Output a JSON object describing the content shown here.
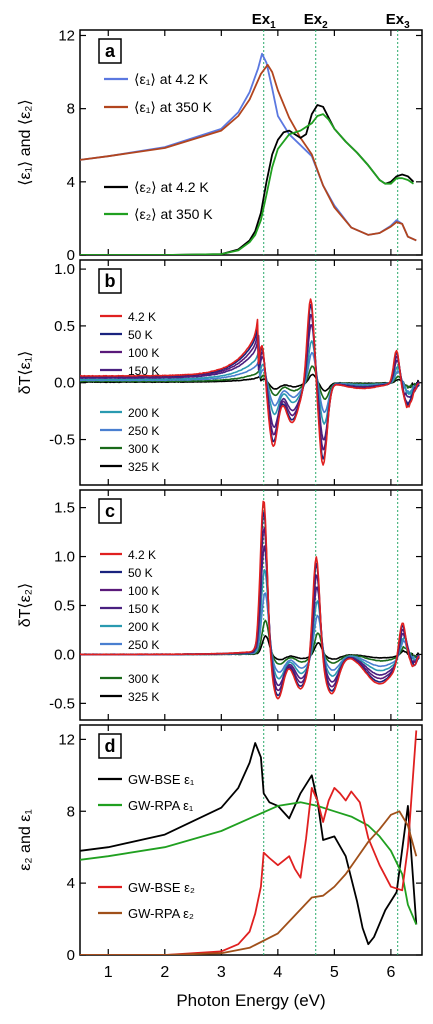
{
  "figure": {
    "xlabel": "Photon Energy (eV)",
    "xticks": [
      "1",
      "2",
      "3",
      "4",
      "5",
      "6"
    ],
    "excitons": [
      {
        "label": "Ex",
        "sub": "1",
        "x": 3.75
      },
      {
        "label": "Ex",
        "sub": "2",
        "x": 4.67
      },
      {
        "label": "Ex",
        "sub": "3",
        "x": 6.12
      }
    ],
    "colors": {
      "blue": "#5b78e0",
      "brown_red": "#b2451e",
      "black": "#000000",
      "green": "#20a020",
      "red": "#e02020",
      "navy": "#1a237e",
      "purple": "#5a1a7a",
      "indigo": "#4a2080",
      "teal": "#2a9ab0",
      "lightblue": "#4a7fd0",
      "darkgreen": "#1a6a1a",
      "brown": "#a0501a",
      "guide": "#2aaa6a"
    }
  },
  "chart_data": [
    {
      "type": "line",
      "panel_label": "a",
      "ylabel": "⟨ε₁⟩ and ⟨ε₂⟩",
      "xlim": [
        0.5,
        6.55
      ],
      "ylim": [
        0,
        12.3
      ],
      "yticks": [
        "0",
        "4",
        "8",
        "12"
      ],
      "series": [
        {
          "name": "⟨ε₁⟩ at 4.2 K",
          "color": "blue",
          "x": [
            0.5,
            1.0,
            2.0,
            3.0,
            3.3,
            3.5,
            3.65,
            3.72,
            3.8,
            3.9,
            4.0,
            4.2,
            4.4,
            4.6,
            4.8,
            5.0,
            5.3,
            5.6,
            5.8,
            6.0,
            6.1,
            6.2,
            6.3,
            6.45
          ],
          "y": [
            5.2,
            5.4,
            5.9,
            6.9,
            7.8,
            8.9,
            10.2,
            11.0,
            10.5,
            9.1,
            7.6,
            6.6,
            6.0,
            5.4,
            3.8,
            2.7,
            1.5,
            1.1,
            1.2,
            1.6,
            1.9,
            1.7,
            1.0,
            0.8
          ]
        },
        {
          "name": "⟨ε₁⟩ at 350 K",
          "color": "brown_red",
          "x": [
            0.5,
            1.0,
            2.0,
            3.0,
            3.3,
            3.5,
            3.7,
            3.82,
            3.9,
            4.0,
            4.2,
            4.4,
            4.6,
            4.8,
            5.0,
            5.3,
            5.6,
            5.8,
            6.0,
            6.1,
            6.2,
            6.3,
            6.45
          ],
          "y": [
            5.2,
            5.4,
            5.85,
            6.8,
            7.6,
            8.5,
            9.9,
            10.4,
            10.0,
            9.0,
            7.5,
            6.4,
            5.5,
            3.8,
            2.6,
            1.5,
            1.1,
            1.2,
            1.55,
            1.8,
            1.7,
            1.0,
            0.8
          ]
        },
        {
          "name": "⟨ε₂⟩ at 4.2 K",
          "color": "black",
          "x": [
            0.5,
            1.0,
            2.0,
            3.0,
            3.3,
            3.5,
            3.6,
            3.7,
            3.8,
            3.9,
            4.0,
            4.1,
            4.2,
            4.3,
            4.4,
            4.5,
            4.6,
            4.7,
            4.8,
            4.9,
            5.0,
            5.2,
            5.4,
            5.6,
            5.8,
            5.9,
            6.0,
            6.1,
            6.2,
            6.3,
            6.4
          ],
          "y": [
            0,
            0,
            0,
            0.05,
            0.3,
            0.8,
            1.3,
            2.3,
            4.0,
            5.5,
            6.3,
            6.7,
            6.8,
            6.6,
            6.4,
            6.6,
            7.7,
            8.2,
            8.1,
            7.5,
            6.9,
            6.2,
            5.6,
            4.9,
            4.1,
            3.9,
            4.0,
            4.3,
            4.4,
            4.3,
            4.0
          ]
        },
        {
          "name": "⟨ε₂⟩ at 350 K",
          "color": "green",
          "x": [
            0.5,
            1.0,
            2.0,
            3.0,
            3.3,
            3.5,
            3.6,
            3.7,
            3.8,
            3.9,
            4.0,
            4.2,
            4.4,
            4.6,
            4.7,
            4.8,
            4.9,
            5.0,
            5.2,
            5.4,
            5.6,
            5.8,
            5.9,
            6.0,
            6.1,
            6.2,
            6.3,
            6.4
          ],
          "y": [
            0,
            0,
            0,
            0.05,
            0.25,
            0.7,
            1.1,
            1.9,
            3.3,
            4.8,
            5.8,
            6.6,
            6.8,
            7.2,
            7.6,
            7.7,
            7.4,
            6.9,
            6.2,
            5.6,
            4.9,
            4.1,
            3.9,
            3.9,
            4.2,
            4.2,
            4.1,
            3.9
          ]
        }
      ]
    },
    {
      "type": "line",
      "panel_label": "b",
      "ylabel": "δT⟨ε₁⟩",
      "xlim": [
        0.5,
        6.55
      ],
      "ylim": [
        -0.9,
        1.08
      ],
      "yticks": [
        "-0.5",
        "0.0",
        "0.5",
        "1.0"
      ],
      "series": [
        {
          "name": "4.2 K",
          "color": "red",
          "amp": 1.0
        },
        {
          "name": "50 K",
          "color": "navy",
          "amp": 0.93
        },
        {
          "name": "100 K",
          "color": "purple",
          "amp": 0.82
        },
        {
          "name": "150 K",
          "color": "indigo",
          "amp": 0.7
        },
        {
          "name": "200 K",
          "color": "teal",
          "amp": 0.5
        },
        {
          "name": "250 K",
          "color": "lightblue",
          "amp": 0.36
        },
        {
          "name": "300 K",
          "color": "darkgreen",
          "amp": 0.2
        },
        {
          "name": "325 K",
          "color": "black",
          "amp": 0.1
        }
      ]
    },
    {
      "type": "line",
      "panel_label": "c",
      "ylabel": "δT⟨ε₂⟩",
      "xlim": [
        0.5,
        6.55
      ],
      "ylim": [
        -0.67,
        1.68
      ],
      "yticks": [
        "-0.5",
        "0.0",
        "0.5",
        "1.0",
        "1.5"
      ],
      "series": [
        {
          "name": "4.2 K",
          "color": "red",
          "amp": 1.0
        },
        {
          "name": "50 K",
          "color": "navy",
          "amp": 0.93
        },
        {
          "name": "100 K",
          "color": "purple",
          "amp": 0.82
        },
        {
          "name": "150 K",
          "color": "indigo",
          "amp": 0.7
        },
        {
          "name": "200 K",
          "color": "teal",
          "amp": 0.55
        },
        {
          "name": "250 K",
          "color": "lightblue",
          "amp": 0.4
        },
        {
          "name": "300 K",
          "color": "darkgreen",
          "amp": 0.22
        },
        {
          "name": "325 K",
          "color": "black",
          "amp": 0.12
        }
      ]
    },
    {
      "type": "line",
      "panel_label": "d",
      "ylabel": "ε₂ and ε₁",
      "xlim": [
        0.5,
        6.55
      ],
      "ylim": [
        0,
        12.8
      ],
      "yticks": [
        "0",
        "4",
        "8",
        "12"
      ],
      "series": [
        {
          "name": "GW-BSE ε₁",
          "color": "black",
          "x": [
            0.5,
            1.0,
            2.0,
            3.0,
            3.3,
            3.5,
            3.6,
            3.7,
            3.75,
            3.85,
            4.0,
            4.2,
            4.4,
            4.6,
            4.7,
            4.8,
            5.0,
            5.2,
            5.4,
            5.5,
            5.6,
            5.7,
            5.9,
            6.1,
            6.3,
            6.45
          ],
          "y": [
            5.8,
            6.0,
            6.7,
            8.2,
            9.3,
            10.7,
            11.8,
            11.0,
            9.0,
            8.5,
            8.3,
            7.6,
            9.0,
            10.0,
            8.6,
            6.4,
            6.6,
            5.5,
            3.0,
            1.5,
            0.6,
            1.0,
            2.5,
            3.5,
            8.3,
            1.7
          ]
        },
        {
          "name": "GW-RPA ε₁",
          "color": "green",
          "x": [
            0.5,
            1.0,
            2.0,
            3.0,
            3.5,
            4.0,
            4.4,
            4.7,
            5.0,
            5.3,
            5.6,
            5.8,
            6.0,
            6.2,
            6.3,
            6.45
          ],
          "y": [
            5.3,
            5.5,
            6.0,
            6.9,
            7.6,
            8.3,
            8.5,
            8.3,
            8.0,
            7.7,
            7.2,
            6.6,
            5.8,
            4.5,
            2.8,
            1.7
          ]
        },
        {
          "name": "GW-BSE ε₂",
          "color": "red",
          "x": [
            0.5,
            1.0,
            2.0,
            3.0,
            3.3,
            3.5,
            3.6,
            3.7,
            3.75,
            3.85,
            4.0,
            4.2,
            4.3,
            4.4,
            4.5,
            4.6,
            4.7,
            4.8,
            4.9,
            5.0,
            5.1,
            5.2,
            5.3,
            5.45,
            5.6,
            5.8,
            6.0,
            6.2,
            6.3,
            6.45
          ],
          "y": [
            0,
            0,
            0,
            0.2,
            0.6,
            1.3,
            2.3,
            3.8,
            5.7,
            5.4,
            5.0,
            5.5,
            4.8,
            4.3,
            6.5,
            9.3,
            8.6,
            7.4,
            8.6,
            9.3,
            9.0,
            8.6,
            9.1,
            8.5,
            6.5,
            5.0,
            3.8,
            3.6,
            6.0,
            12.5
          ]
        },
        {
          "name": "GW-RPA ε₂",
          "color": "brown",
          "x": [
            0.5,
            1.0,
            2.0,
            3.0,
            3.5,
            4.0,
            4.3,
            4.6,
            4.8,
            5.0,
            5.2,
            5.4,
            5.6,
            5.8,
            6.0,
            6.15,
            6.3,
            6.45
          ],
          "y": [
            0,
            0,
            0,
            0.1,
            0.4,
            1.2,
            2.2,
            3.2,
            3.3,
            3.8,
            4.5,
            5.4,
            6.3,
            7.0,
            7.8,
            8.0,
            7.2,
            5.5
          ]
        }
      ]
    }
  ]
}
